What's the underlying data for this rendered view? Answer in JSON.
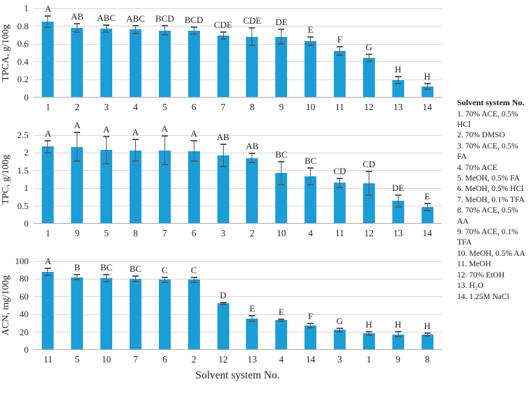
{
  "legend": {
    "title": "Solvent system No.",
    "items": [
      "1. 70% ACE, 0.5% HCl",
      "2. 70% DMSO",
      "3. 70% ACE, 0.5% FA",
      "4. 70% ACE",
      "5. MeOH, 0.5% FA",
      "6. MeOH, 0.5% HCl",
      "7. MeOH, 0.1% TFA",
      "8. 70% ACE, 0.5% AA",
      "9. 70% ACE, 0.1% TFA",
      "10. MeOH, 0.5% AA",
      "11. MeOH",
      "12. 70% EtOH",
      "13. H₂O",
      "14. 1.25M NaCl"
    ]
  },
  "chart_data": [
    {
      "type": "bar",
      "title": "",
      "ylabel": "TPCA, g/100g",
      "xlabel": "",
      "ylim": [
        0,
        1
      ],
      "ytick_values": [
        0,
        0.2,
        0.4,
        0.6,
        0.8,
        1
      ],
      "ytick_labels": [
        "0",
        "0.2",
        "0.4",
        "0.6",
        "0.8",
        "1"
      ],
      "grid": true,
      "bar_color": "#1b9dd8",
      "categories": [
        "1",
        "2",
        "3",
        "4",
        "5",
        "6",
        "7",
        "8",
        "9",
        "10",
        "11",
        "12",
        "13",
        "14"
      ],
      "values": [
        0.85,
        0.78,
        0.77,
        0.76,
        0.75,
        0.75,
        0.69,
        0.68,
        0.68,
        0.63,
        0.52,
        0.44,
        0.19,
        0.12
      ],
      "errors": [
        0.06,
        0.05,
        0.04,
        0.04,
        0.05,
        0.04,
        0.04,
        0.1,
        0.08,
        0.05,
        0.05,
        0.04,
        0.04,
        0.03
      ],
      "sig_letters": [
        "A",
        "AB",
        "ABC",
        "ABC",
        "BCD",
        "BCD",
        "CDE",
        "CDE",
        "DE",
        "E",
        "F",
        "G",
        "H",
        "H"
      ]
    },
    {
      "type": "bar",
      "title": "",
      "ylabel": "TPC, g/100g",
      "xlabel": "",
      "ylim": [
        0,
        2.5
      ],
      "ytick_values": [
        0,
        0.5,
        1,
        1.5,
        2,
        2.5
      ],
      "ytick_labels": [
        "0",
        "0.5",
        "1",
        "1.5",
        "2",
        "2.5"
      ],
      "grid": true,
      "bar_color": "#1b9dd8",
      "categories": [
        "1",
        "9",
        "5",
        "8",
        "7",
        "6",
        "3",
        "2",
        "10",
        "4",
        "11",
        "12",
        "13",
        "14"
      ],
      "values": [
        2.18,
        2.17,
        2.08,
        2.07,
        2.07,
        2.05,
        1.93,
        1.85,
        1.42,
        1.33,
        1.15,
        1.13,
        0.63,
        0.45
      ],
      "errors": [
        0.17,
        0.4,
        0.39,
        0.31,
        0.41,
        0.29,
        0.32,
        0.13,
        0.33,
        0.23,
        0.13,
        0.34,
        0.17,
        0.1
      ],
      "sig_letters": [
        "A",
        "A",
        "A",
        "A",
        "A",
        "A",
        "AB",
        "AB",
        "BC",
        "BC",
        "CD",
        "CD",
        "DE",
        "E"
      ]
    },
    {
      "type": "bar",
      "title": "",
      "ylabel": "ACN, mg/100g",
      "xlabel": "Solvent system No.",
      "ylim": [
        0,
        100
      ],
      "ytick_values": [
        0,
        20,
        40,
        60,
        80,
        100
      ],
      "ytick_labels": [
        "0",
        "20",
        "40",
        "60",
        "80",
        "100"
      ],
      "grid": true,
      "bar_color": "#1b9dd8",
      "categories": [
        "11",
        "5",
        "10",
        "7",
        "6",
        "2",
        "12",
        "13",
        "4",
        "14",
        "3",
        "1",
        "9",
        "8"
      ],
      "values": [
        88,
        82,
        81,
        80,
        79,
        79,
        52,
        35,
        33,
        27,
        22,
        18,
        17,
        16.5
      ],
      "errors": [
        4,
        3,
        4,
        3,
        3,
        2.5,
        1.5,
        3.5,
        1.5,
        2.5,
        2,
        2,
        2.5,
        1.5
      ],
      "sig_letters": [
        "A",
        "B",
        "BC",
        "BC",
        "C",
        "C",
        "D",
        "E",
        "E",
        "F",
        "G",
        "H",
        "H",
        "H"
      ]
    }
  ]
}
